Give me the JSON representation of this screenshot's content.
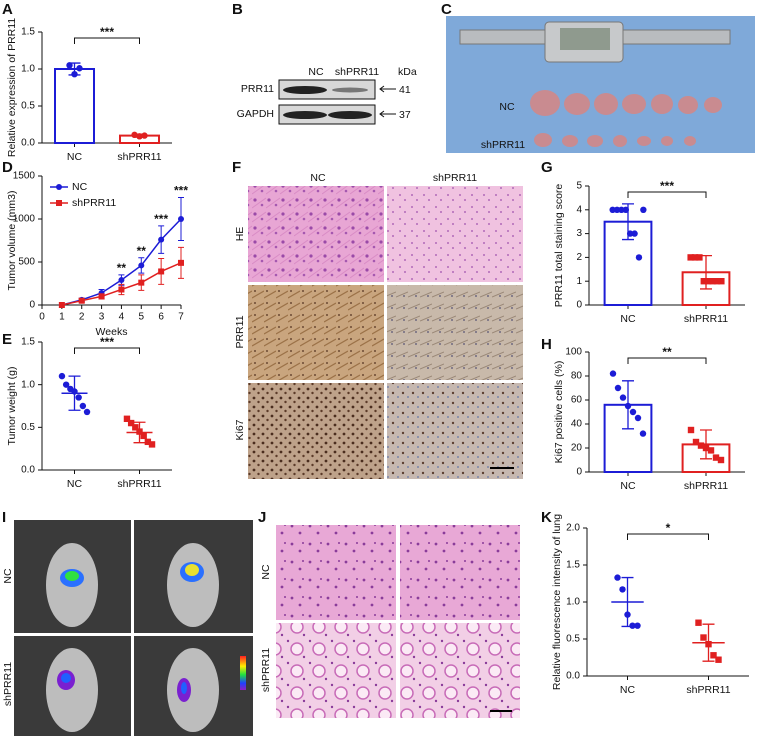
{
  "panel_labels": [
    "A",
    "B",
    "C",
    "D",
    "E",
    "F",
    "G",
    "H",
    "I",
    "J",
    "K"
  ],
  "blot": {
    "columns": [
      "NC",
      "shPRR11"
    ],
    "unit": "kDa",
    "rows": [
      {
        "name": "PRR11",
        "kda": "41"
      },
      {
        "name": "GAPDH",
        "kda": "37"
      }
    ]
  },
  "photo": {
    "rows": [
      "NC",
      "shPRR11"
    ]
  },
  "histology": {
    "columns": [
      "NC",
      "shPRR11"
    ],
    "rows": [
      "HE",
      "PRR11",
      "Ki67"
    ]
  },
  "imaging": {
    "rows": [
      "NC",
      "shPRR11"
    ]
  },
  "lung": {
    "rows": [
      "NC",
      "shPRR11"
    ]
  },
  "chart_data": [
    {
      "type": "bar",
      "ylabel": "Relative expression of PRR11",
      "categories": [
        "NC",
        "shPRR11"
      ],
      "values": [
        1.0,
        0.1
      ],
      "errors": [
        0.08,
        0.02
      ],
      "points": [
        [
          1.05,
          0.93,
          1.01
        ],
        [
          0.11,
          0.09,
          0.1
        ]
      ],
      "colors": [
        "#1c1cd6",
        "#e02020"
      ],
      "markers": [
        "circle",
        "circle"
      ],
      "ylim": [
        0,
        1.5
      ],
      "yticks": [
        {
          "value": 0,
          "label": "0.0"
        },
        0.5,
        {
          "value": 1,
          "label": "1.0"
        },
        1.5
      ],
      "significance": "***"
    },
    {
      "type": "line",
      "xlabel": "Weeks",
      "ylabel": "Tumor volume (mm3)",
      "x": [
        1,
        2,
        3,
        4,
        5,
        6,
        7
      ],
      "series": [
        {
          "name": "NC",
          "color": "#1c1cd6",
          "marker": "circle",
          "values": [
            0,
            60,
            140,
            290,
            460,
            760,
            1000
          ],
          "errors": [
            0,
            20,
            40,
            60,
            90,
            160,
            250
          ]
        },
        {
          "name": "shPRR11",
          "color": "#e02020",
          "marker": "square",
          "values": [
            0,
            50,
            100,
            180,
            260,
            390,
            490
          ],
          "errors": [
            0,
            20,
            30,
            60,
            90,
            150,
            180
          ]
        }
      ],
      "xlim": [
        0,
        7
      ],
      "xticks": [
        0,
        1,
        2,
        3,
        4,
        5,
        6,
        7
      ],
      "ylim": [
        0,
        1500
      ],
      "yticks": [
        0,
        500,
        1000,
        1500
      ],
      "annotations": [
        {
          "x": 4,
          "text": "**"
        },
        {
          "x": 5,
          "text": "**"
        },
        {
          "x": 6,
          "text": "***"
        },
        {
          "x": 7,
          "text": "***"
        }
      ]
    },
    {
      "type": "dot",
      "ylabel": "Tumor weight (g)",
      "categories": [
        "NC",
        "shPRR11"
      ],
      "values": [
        0.9,
        0.44
      ],
      "errors": [
        0.2,
        0.12
      ],
      "points": [
        [
          1.1,
          1.0,
          0.95,
          0.92,
          0.85,
          0.75,
          0.68
        ],
        [
          0.6,
          0.55,
          0.5,
          0.45,
          0.4,
          0.33,
          0.3
        ]
      ],
      "colors": [
        "#1c1cd6",
        "#e02020"
      ],
      "markers": [
        "circle",
        "square"
      ],
      "ylim": [
        0,
        1.5
      ],
      "yticks": [
        {
          "value": 0,
          "label": "0.0"
        },
        0.5,
        {
          "value": 1,
          "label": "1.0"
        },
        1.5
      ],
      "significance": "***"
    },
    {
      "type": "bar",
      "ylabel": "PRR11 total staining score",
      "categories": [
        "NC",
        "shPRR11"
      ],
      "values": [
        3.5,
        1.375
      ],
      "errors": [
        0.75,
        0.7
      ],
      "points": [
        [
          4,
          4,
          4,
          4,
          3,
          3,
          2,
          4
        ],
        [
          2,
          2,
          2,
          1,
          1,
          1,
          1,
          1
        ]
      ],
      "colors": [
        "#1c1cd6",
        "#e02020"
      ],
      "markers": [
        "circle",
        "square"
      ],
      "ylim": [
        0,
        5
      ],
      "yticks": [
        0,
        1,
        2,
        3,
        4,
        5
      ],
      "significance": "***"
    },
    {
      "type": "bar",
      "ylabel": "Ki67 positive cells (%)",
      "categories": [
        "NC",
        "shPRR11"
      ],
      "values": [
        56,
        23
      ],
      "errors": [
        20,
        12
      ],
      "points": [
        [
          82,
          70,
          62,
          55,
          50,
          45,
          32
        ],
        [
          35,
          25,
          22,
          20,
          18,
          12,
          10
        ]
      ],
      "colors": [
        "#1c1cd6",
        "#e02020"
      ],
      "markers": [
        "circle",
        "square"
      ],
      "ylim": [
        0,
        100
      ],
      "yticks": [
        0,
        20,
        40,
        60,
        80,
        100
      ],
      "significance": "**"
    },
    {
      "type": "dot",
      "ylabel": "Relative fluorescence intensity of lung",
      "categories": [
        "NC",
        "shPRR11"
      ],
      "values": [
        1.0,
        0.45
      ],
      "errors": [
        0.33,
        0.25
      ],
      "points": [
        [
          1.33,
          1.17,
          0.83,
          0.68,
          0.68
        ],
        [
          0.72,
          0.52,
          0.43,
          0.28,
          0.22
        ]
      ],
      "colors": [
        "#1c1cd6",
        "#e02020"
      ],
      "markers": [
        "circle",
        "square"
      ],
      "ylim": [
        0,
        2
      ],
      "yticks": [
        {
          "value": 0,
          "label": "0.0"
        },
        0.5,
        {
          "value": 1,
          "label": "1.0"
        },
        1.5,
        {
          "value": 2,
          "label": "2.0"
        }
      ],
      "significance": "*"
    }
  ]
}
